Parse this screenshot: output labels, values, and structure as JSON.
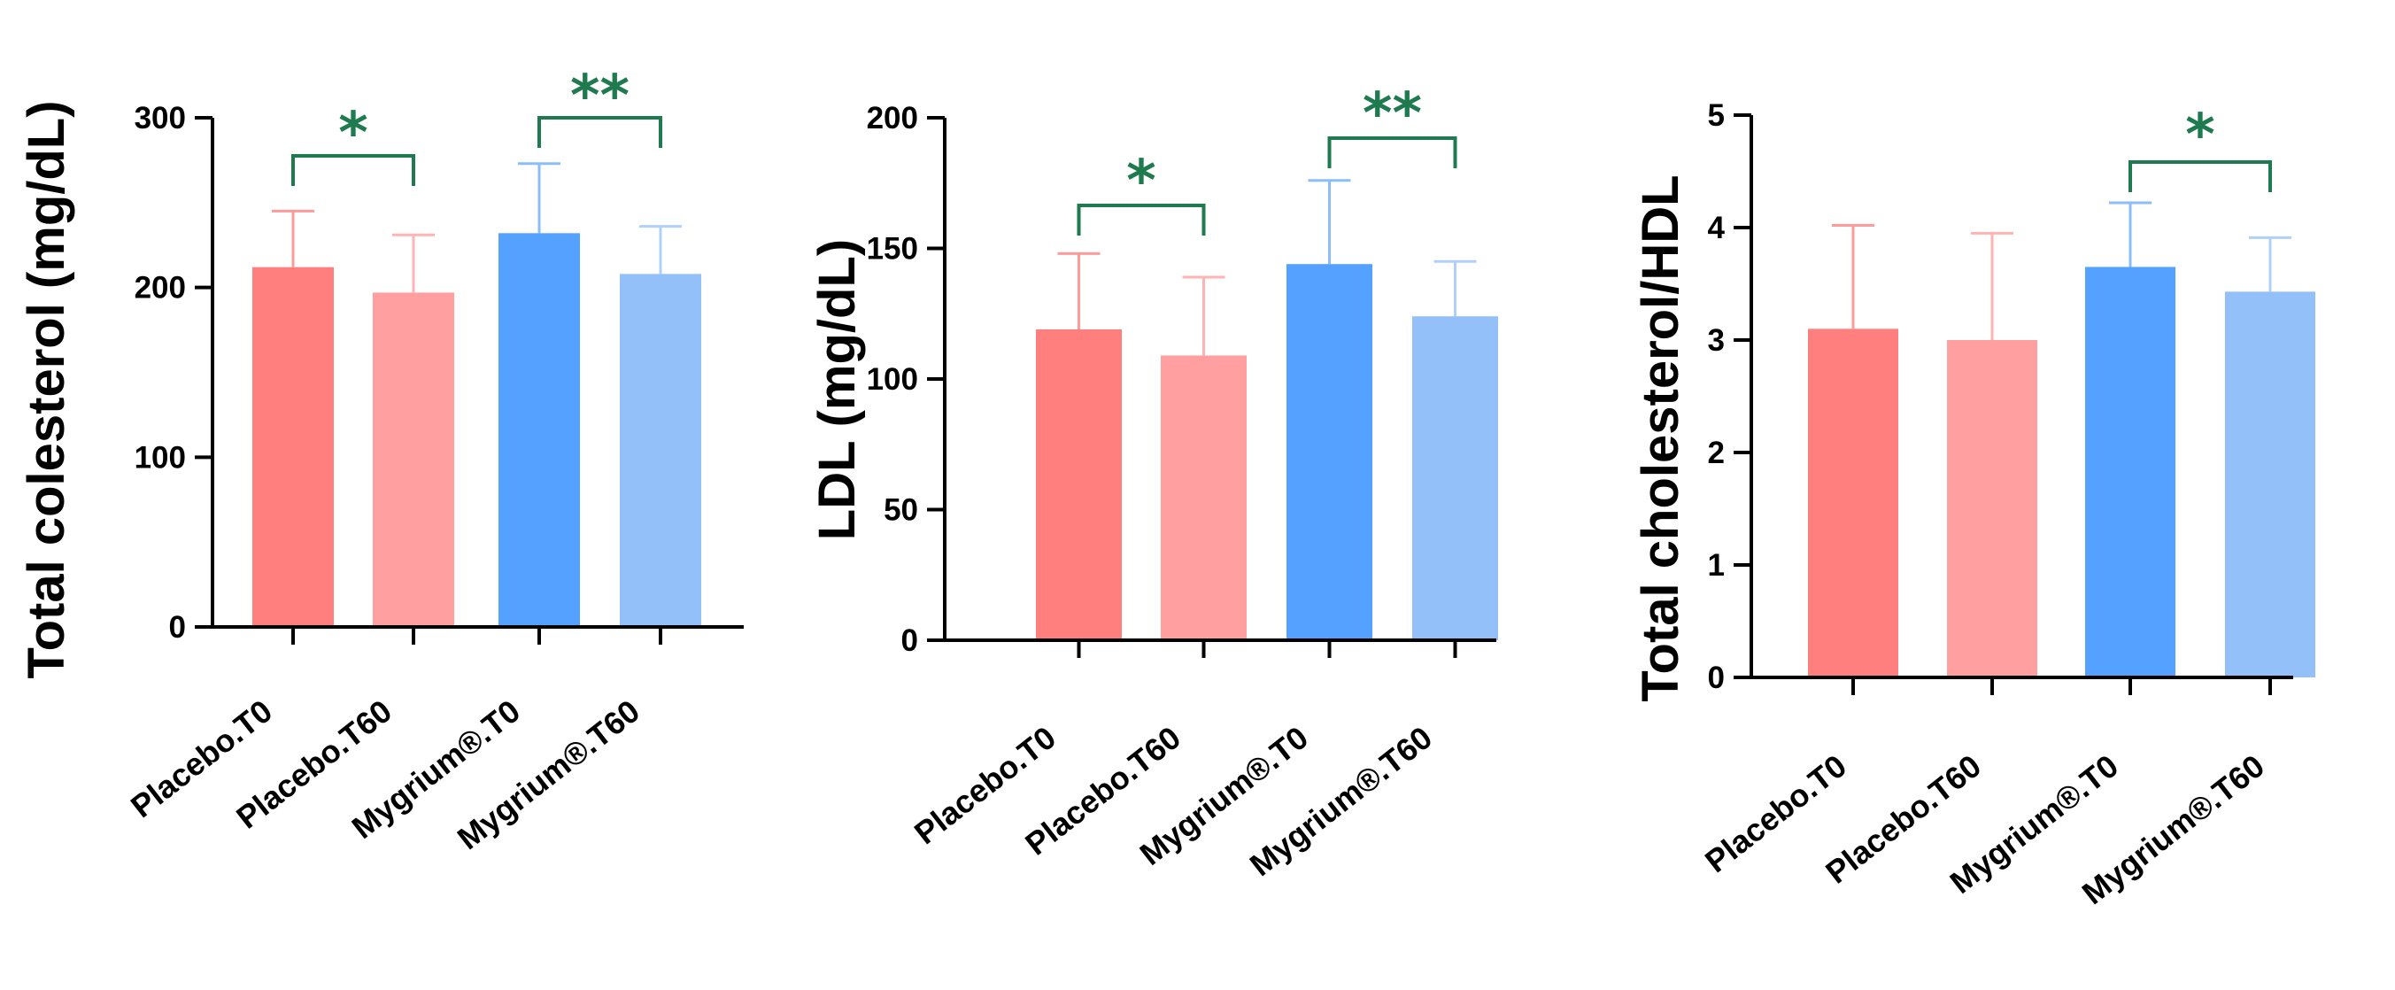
{
  "colors": {
    "placebo_t0": "#ff7f7f",
    "placebo_t60": "#ff9f9f",
    "mygrium_t0": "#55a1ff",
    "mygrium_t60": "#94c0fa",
    "placebo_t0_err": "#ff9a9a",
    "placebo_t60_err": "#ffb3b3",
    "mygrium_t0_err": "#8cbdfb",
    "mygrium_t60_err": "#b0d0fb",
    "significance": "#1f7a4f",
    "axis": "#000000"
  },
  "chart_data": [
    {
      "type": "bar",
      "title": "",
      "xlabel": "",
      "ylabel": "Total colesterol (mg/dL)",
      "ylim": [
        0,
        300
      ],
      "yticks": [
        0,
        100,
        200,
        300
      ],
      "categories": [
        "Placebo.T0",
        "Placebo.T60",
        "Mygrium®.T0",
        "Mygrium®.T60"
      ],
      "values": [
        212,
        197,
        232,
        208
      ],
      "errors": [
        33,
        34,
        41,
        28
      ],
      "significance": [
        {
          "from": 0,
          "to": 1,
          "label": "*"
        },
        {
          "from": 2,
          "to": 3,
          "label": "**"
        }
      ]
    },
    {
      "type": "bar",
      "title": "",
      "xlabel": "",
      "ylabel": "LDL (mg/dL)",
      "ylim": [
        0,
        200
      ],
      "yticks": [
        0,
        50,
        100,
        150,
        200
      ],
      "categories": [
        "Placebo.T0",
        "Placebo.T60",
        "Mygrium®.T0",
        "Mygrium®.T60"
      ],
      "values": [
        119,
        109,
        144,
        124
      ],
      "errors": [
        29,
        30,
        32,
        21
      ],
      "significance": [
        {
          "from": 0,
          "to": 1,
          "label": "*"
        },
        {
          "from": 2,
          "to": 3,
          "label": "**"
        }
      ]
    },
    {
      "type": "bar",
      "title": "",
      "xlabel": "",
      "ylabel": "Total cholesterol/HDL",
      "ylim": [
        0,
        5
      ],
      "yticks": [
        0,
        1,
        2,
        3,
        4,
        5
      ],
      "categories": [
        "Placebo.T0",
        "Placebo.T60",
        "Mygrium®.T0",
        "Mygrium®.T60"
      ],
      "values": [
        3.1,
        3.0,
        3.65,
        3.43
      ],
      "errors": [
        0.92,
        0.95,
        0.57,
        0.48
      ],
      "significance": [
        {
          "from": 2,
          "to": 3,
          "label": "*"
        }
      ]
    }
  ]
}
